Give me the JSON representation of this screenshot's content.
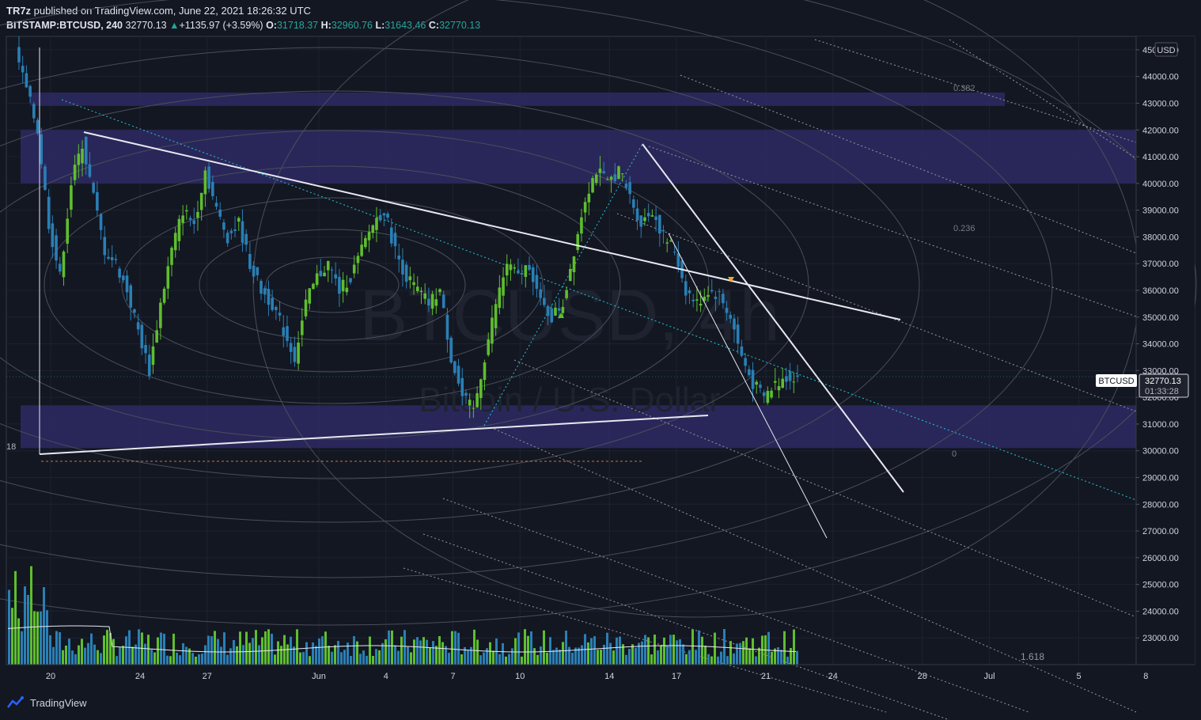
{
  "header": {
    "author": "TR7z",
    "published": " published on TradingView.com, June 22, 2021 18:26:32 UTC",
    "symbol": "BITSTAMP:BTCUSD, 240",
    "last": "32770.13",
    "change": "+1135.97 (+3.59%)",
    "o_label": "O:",
    "o_val": "31718.37",
    "h_label": "H:",
    "h_val": "32960.76",
    "l_label": "L:",
    "l_val": "31643.46",
    "c_label": "C:",
    "c_val": "32770.13"
  },
  "watermark": {
    "line1": "BTCUSD, 4h",
    "line2": "Bitcoin / U.S. Dollar"
  },
  "currency": "USD",
  "price_tag": {
    "symbol": "BTCUSD",
    "price": "32770.13",
    "countdown": "01:33:28"
  },
  "fib_labels": [
    "0.382",
    "0.236",
    "0"
  ],
  "ext_label": "1.618",
  "left_marker": "18",
  "footer": {
    "brand": "TradingView"
  },
  "colors": {
    "background": "#131722",
    "up": "#5fbe2e",
    "down": "#2a7fb5",
    "zone": "#2e2a63",
    "line": "#e8e8f0"
  },
  "chart_data": {
    "type": "candlestick",
    "title": "",
    "ylim": [
      22000,
      45500
    ],
    "y_ticks": [
      "45000.00",
      "44000.00",
      "43000.00",
      "42000.00",
      "41000.00",
      "40000.00",
      "39000.00",
      "38000.00",
      "37000.00",
      "36000.00",
      "35000.00",
      "34000.00",
      "33000.00",
      "32000.00",
      "31000.00",
      "30000.00",
      "29000.00",
      "28000.00",
      "27000.00",
      "26000.00",
      "25000.00",
      "24000.00",
      "23000.00"
    ],
    "x_ticks": [
      "20",
      "24",
      "27",
      "Jun",
      "4",
      "7",
      "10",
      "14",
      "17",
      "21",
      "24",
      "28",
      "Jul",
      "5",
      "8"
    ],
    "x_tick_days": [
      0,
      4,
      7,
      12,
      15,
      18,
      21,
      25,
      28,
      32,
      35,
      39,
      42,
      46,
      49
    ],
    "close_path_days": [
      -1.5,
      -1,
      -0.5,
      0,
      0.5,
      1,
      1.5,
      2,
      2.5,
      3,
      3.5,
      4,
      4.5,
      5,
      5.5,
      6,
      6.5,
      7,
      7.5,
      8,
      8.5,
      9,
      9.5,
      10,
      10.5,
      11,
      11.5,
      12,
      12.5,
      13,
      13.5,
      14,
      14.5,
      15,
      15.5,
      16,
      16.5,
      17,
      17.5,
      18,
      18.5,
      19,
      19.5,
      20,
      20.5,
      21,
      21.5,
      22,
      22.5,
      23,
      23.5,
      24,
      24.5,
      25,
      25.5,
      26,
      26.5,
      27,
      27.5,
      28,
      28.5,
      29,
      29.5,
      30,
      30.5,
      31,
      31.5,
      32,
      32.5,
      33,
      33.5
    ],
    "close_path_prices": [
      45000,
      43500,
      42000,
      38500,
      36500,
      40000,
      41500,
      39500,
      37500,
      37000,
      36000,
      34500,
      33000,
      35500,
      37500,
      39000,
      38500,
      40500,
      39000,
      38000,
      38500,
      37000,
      36000,
      35500,
      34500,
      33500,
      35500,
      36500,
      37000,
      36000,
      36500,
      37500,
      38500,
      39000,
      37500,
      36500,
      36000,
      35500,
      36000,
      33500,
      32000,
      31500,
      33500,
      35500,
      37000,
      36500,
      37000,
      35500,
      35000,
      35500,
      37500,
      39500,
      40500,
      40000,
      40500,
      39500,
      38500,
      39000,
      38000,
      37500,
      36000,
      35500,
      36000,
      35800,
      35000,
      33500,
      32500,
      32000,
      32500,
      32770,
      32770
    ],
    "zones": [
      {
        "from": 42900,
        "to": 43400
      },
      {
        "from": 40000,
        "to": 42000
      },
      {
        "from": 30100,
        "to": 31700
      }
    ],
    "last_price": 32770.13
  }
}
